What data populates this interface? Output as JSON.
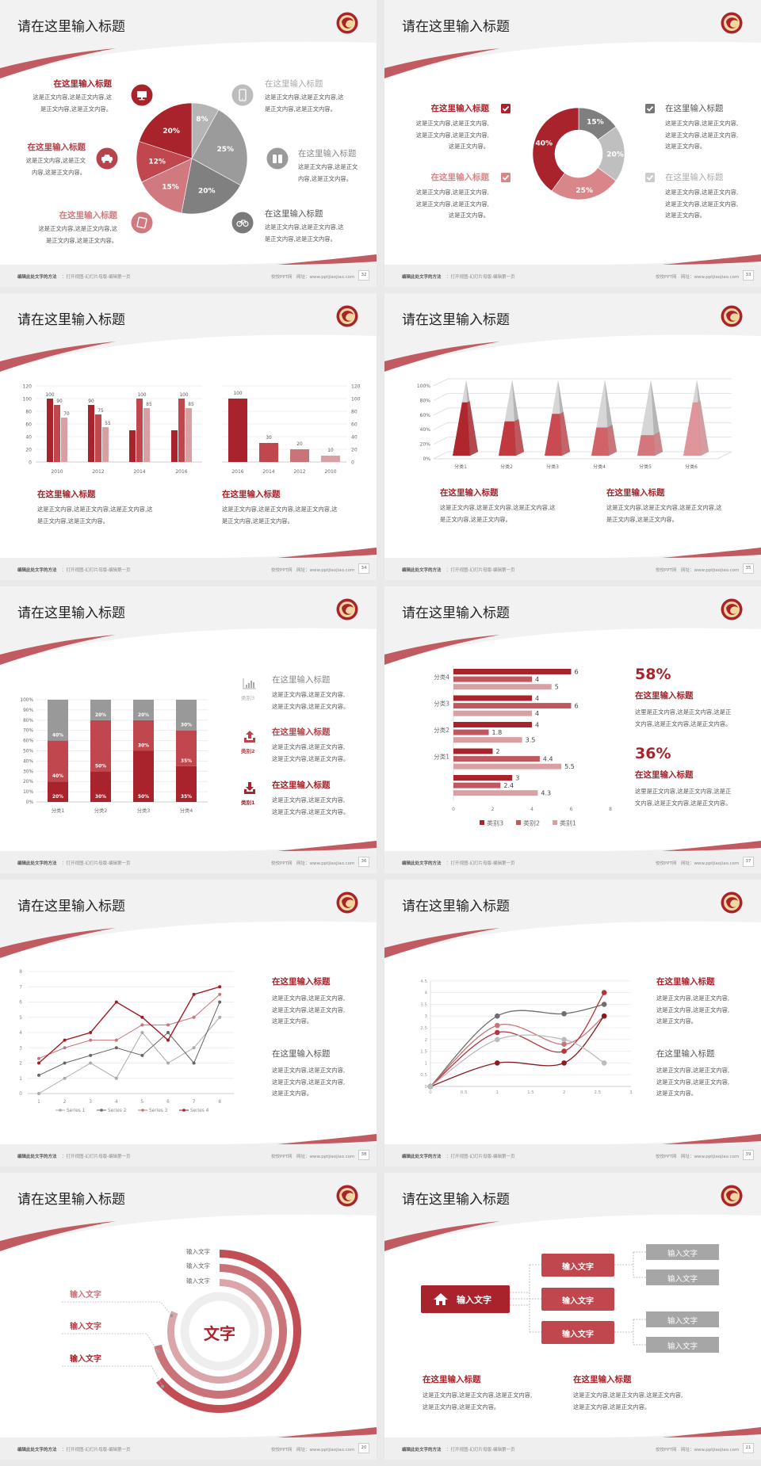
{
  "footer": {
    "hint_bold": "编辑此处文字的方法",
    "hint": "：打开视图-幻灯片母版-编辑第一页",
    "site": "佼佼PPT网",
    "url": "网址：www.pptjiaojiao.com"
  },
  "colors": {
    "primary": "#a8232b",
    "secondary": "#c0474e",
    "tertiary": "#c9737a",
    "light": "#d9a0a4",
    "gray": "#999999",
    "logo": "#a8232b"
  },
  "slides": [
    {
      "title": "请在这里输入标题",
      "page": "32",
      "items": [
        {
          "heading": "在这里输入标题",
          "lines": [
            "这是正文内容,这是正文内容,这",
            "是正文内容,这是正文内容。"
          ],
          "icon": "monitor-icon"
        },
        {
          "heading": "在这里输入标题",
          "lines": [
            "这是正文内容,这是正文",
            "内容,这是正文内容。"
          ],
          "icon": "car-icon"
        },
        {
          "heading": "在这里输入标题",
          "lines": [
            "这是正文内容,这是正文内容,这",
            "是正文内容,这是正文内容。"
          ],
          "icon": "book-icon"
        },
        {
          "heading": "在这里输入标题",
          "lines": [
            "这是正文内容,这是正文内容,这",
            "是正文内容,这是正文内容。"
          ],
          "icon": "phone-icon"
        },
        {
          "heading": "在这里输入标题",
          "lines": [
            "这是正文内容,这是正文",
            "内容,这是正文内容。"
          ],
          "icon": "binoculars-icon"
        },
        {
          "heading": "在这里输入标题",
          "lines": [
            "这是正文内容,这是正文内容,这",
            "是正文内容,这是正文内容。"
          ],
          "icon": "bicycle-icon"
        }
      ]
    },
    {
      "title": "请在这里输入标题",
      "page": "33",
      "items": [
        {
          "heading": "在这里输入标题",
          "lines": [
            "这是正文内容,这是正文内容,",
            "这是正文内容,这是正文内容,",
            "这是正文内容。"
          ],
          "icon": "checkbox-icon"
        },
        {
          "heading": "在这里输入标题",
          "lines": [
            "这是正文内容,这是正文内容,",
            "这是正文内容,这是正文内容,",
            "这是正文内容。"
          ],
          "icon": "checkbox-icon"
        },
        {
          "heading": "在这里输入标题",
          "lines": [
            "这是正文内容,这是正文内容,",
            "这是正文内容,这是正文内容,",
            "这是正文内容。"
          ],
          "icon": "checkbox-icon"
        },
        {
          "heading": "在这里输入标题",
          "lines": [
            "这是正文内容,这是正文内容,",
            "这是正文内容,这是正文内容,",
            "这是正文内容。"
          ],
          "icon": "checkbox-icon"
        }
      ]
    },
    {
      "title": "请在这里输入标题",
      "page": "34",
      "items": [
        {
          "heading": "在这里输入标题",
          "lines": [
            "这是正文内容,这是正文内容,这是正文内容,这",
            "是正文内容,这是正文内容。"
          ]
        },
        {
          "heading": "在这里输入标题",
          "lines": [
            "这是正文内容,这是正文内容,这是正文内容,这",
            "是正文内容,这是正文内容。"
          ]
        }
      ]
    },
    {
      "title": "请在这里输入标题",
      "page": "35",
      "items": [
        {
          "heading": "在这里输入标题",
          "lines": [
            "这是正文内容,这是正文内容,这是正文内容,这",
            "是正文内容,这是正文内容。"
          ]
        },
        {
          "heading": "在这里输入标题",
          "lines": [
            "这是正文内容,这是正文内容,这是正文内容,这",
            "是正文内容,这是正文内容。"
          ]
        }
      ]
    },
    {
      "title": "请在这里输入标题",
      "page": "36",
      "items": [
        {
          "heading": "在这里输入标题",
          "lines": [
            "这是正文内容,这是正文内容,",
            "这是正文内容,这是正文内容。"
          ],
          "label": "类别3",
          "icon": "bar-chart-icon"
        },
        {
          "heading": "在这里输入标题",
          "lines": [
            "这是正文内容,这是正文内容,",
            "这是正文内容,这是正文内容。"
          ],
          "label": "类别2",
          "icon": "upload-icon"
        },
        {
          "heading": "在这里输入标题",
          "lines": [
            "这是正文内容,这是正文内容,",
            "这是正文内容,这是正文内容。"
          ],
          "label": "类别1",
          "icon": "download-icon"
        }
      ]
    },
    {
      "title": "请在这里输入标题",
      "page": "37",
      "items": [
        {
          "stat": "58%",
          "heading": "在这里输入标题",
          "lines": [
            "这里是正文内容,这是正文内容,这是正",
            "文内容,这是正文内容,这是正文内容。"
          ]
        },
        {
          "stat": "36%",
          "heading": "在这里输入标题",
          "lines": [
            "这里是正文内容,这是正文内容,这是正",
            "文内容,这是正文内容,这是正文内容。"
          ]
        }
      ]
    },
    {
      "title": "请在这里输入标题",
      "page": "38",
      "items": [
        {
          "heading": "在这里输入标题",
          "lines": [
            "这是正文内容,这是正文内容,",
            "这是正文内容,这是正文内容,",
            "这是正文内容。"
          ]
        },
        {
          "heading": "在这里输入标题",
          "lines": [
            "这是正文内容,这是正文内容,",
            "这是正文内容,这是正文内容,",
            "这是正文内容。"
          ]
        }
      ]
    },
    {
      "title": "请在这里输入标题",
      "page": "39",
      "items": [
        {
          "heading": "在这里输入标题",
          "lines": [
            "这是正文内容,这是正文内容,",
            "这是正文内容,这是正文内容,",
            "这是正文内容。"
          ]
        },
        {
          "heading": "在这里输入标题",
          "lines": [
            "这是正文内容,这是正文内容,",
            "这是正文内容,这是正文内容,",
            "这是正文内容。"
          ]
        }
      ]
    },
    {
      "title": "请在这里输入标题",
      "page": "20",
      "center": "文字",
      "top_labels": [
        "输入文字",
        "输入文字",
        "输入文字"
      ],
      "left_labels": [
        "输入文字",
        "输入文字",
        "输入文字"
      ]
    },
    {
      "title": "请在这里输入标题",
      "page": "21",
      "root": {
        "label": "输入文字",
        "icon": "home-icon"
      },
      "mid": [
        "输入文字",
        "输入文字",
        "输入文字"
      ],
      "leaves": [
        "输入文字",
        "输入文字",
        "输入文字",
        "输入文字"
      ],
      "items": [
        {
          "heading": "在这里输入标题",
          "lines": [
            "这是正文内容,这是正文内容,这是正文内容,",
            "这是正文内容,这是正文内容。"
          ]
        },
        {
          "heading": "在这里输入标题",
          "lines": [
            "这是正文内容,这是正文内容,这是正文内容,",
            "这是正文内容,这是正文内容。"
          ]
        }
      ]
    }
  ],
  "chart_data": [
    {
      "type": "pie",
      "values": [
        8,
        25,
        20,
        15,
        12,
        20
      ],
      "labels": [
        "8%",
        "25%",
        "20%",
        "15%",
        "12%",
        "20%"
      ],
      "colors": [
        "#b5b5b5",
        "#9b9b9b",
        "#808080",
        "#d07a80",
        "#c0474e",
        "#a8232b"
      ]
    },
    {
      "type": "pie",
      "donut": true,
      "values": [
        15,
        20,
        25,
        40
      ],
      "labels": [
        "15%",
        "20%",
        "25%",
        "40%"
      ],
      "colors": [
        "#7f7f7f",
        "#bfbfbf",
        "#d9868b",
        "#a8232b"
      ]
    },
    {
      "type": "bar",
      "categories": [
        "2010",
        "2012",
        "2014",
        "2016"
      ],
      "ylim": [
        0,
        120
      ],
      "yticks": [
        "0",
        "20",
        "40",
        "60",
        "80",
        "100",
        "120"
      ],
      "series": [
        {
          "values": [
            100,
            90,
            50,
            50
          ],
          "labels": [
            "100",
            "90",
            null,
            null
          ],
          "color": "#a8232b"
        },
        {
          "values": [
            90,
            75,
            100,
            100
          ],
          "labels": [
            "90",
            "75",
            "100",
            "100"
          ],
          "color": "#c0474e"
        },
        {
          "values": [
            70,
            55,
            85,
            85
          ],
          "labels": [
            "70",
            "55",
            "85",
            "85"
          ],
          "color": "#d9a0a4"
        }
      ]
    },
    {
      "type": "bar",
      "categories": [
        "2016",
        "2014",
        "2012",
        "2010"
      ],
      "values": [
        100,
        30,
        20,
        10
      ],
      "labels": [
        "100",
        "30",
        "20",
        "10"
      ],
      "ylim": [
        0,
        120
      ],
      "yticks": [
        "0",
        "20",
        "40",
        "60",
        "80",
        "100",
        "120"
      ],
      "axis": "right",
      "colors": [
        "#a8232b",
        "#c0474e",
        "#c9737a",
        "#d9a0a4"
      ]
    },
    {
      "type": "bar",
      "style": "3d-pyramid",
      "categories": [
        "分类1",
        "分类2",
        "分类3",
        "分类4",
        "分类5",
        "分类6"
      ],
      "values": [
        70,
        45,
        55,
        37,
        27,
        70
      ],
      "ylim": [
        0,
        100
      ],
      "yticks": [
        "0%",
        "20%",
        "40%",
        "60%",
        "80%",
        "100%"
      ],
      "colors": [
        "#b0262d",
        "#c0393f",
        "#c94a50",
        "#d06268",
        "#d4777c",
        "#e0959a"
      ]
    },
    {
      "type": "bar",
      "stacked": "percent",
      "categories": [
        "分类1",
        "分类2",
        "分类3",
        "分类4"
      ],
      "yticks": [
        "0%",
        "10%",
        "20%",
        "30%",
        "40%",
        "50%",
        "60%",
        "70%",
        "80%",
        "90%",
        "100%"
      ],
      "series": [
        {
          "name": "类别1",
          "values": [
            20,
            30,
            50,
            35
          ],
          "labels": [
            "20%",
            "30%",
            "50%",
            "35%"
          ],
          "color": "#a8232b"
        },
        {
          "name": "类别2",
          "values": [
            40,
            50,
            30,
            35
          ],
          "labels": [
            "40%",
            "50%",
            "30%",
            "35%"
          ],
          "color": "#c0474e"
        },
        {
          "name": "类别3",
          "values": [
            40,
            20,
            20,
            30
          ],
          "labels": [
            "40%",
            "20%",
            "20%",
            "30%"
          ],
          "color": "#999999"
        }
      ]
    },
    {
      "type": "bar",
      "orientation": "horizontal",
      "categories": [
        "分类4",
        "分类3",
        "分类2",
        "分类1",
        ""
      ],
      "xlim": [
        0,
        8
      ],
      "xticks": [
        "0",
        "2",
        "4",
        "6",
        "8"
      ],
      "legend": "bottom",
      "series": [
        {
          "name": "类别3",
          "values": [
            6,
            4,
            4,
            2,
            3
          ],
          "labels": [
            "6",
            "4",
            "4",
            "2",
            "3"
          ],
          "color": "#a8232b"
        },
        {
          "name": "类别2",
          "values": [
            4,
            6,
            1.8,
            4.4,
            2.4
          ],
          "labels": [
            "4",
            "6",
            "1.8",
            "4.4",
            "2.4"
          ],
          "color": "#c0575e"
        },
        {
          "name": "类别1",
          "values": [
            5,
            4,
            3.5,
            5.5,
            4.3
          ],
          "labels": [
            "5",
            "4",
            "3.5",
            "5.5",
            "4.3"
          ],
          "color": "#d9a0a4"
        }
      ]
    },
    {
      "type": "line",
      "x": [
        "1",
        "2",
        "3",
        "4",
        "5",
        "6",
        "7",
        "8"
      ],
      "ylim": [
        0,
        8
      ],
      "yticks": [
        "0",
        "1",
        "2",
        "3",
        "4",
        "5",
        "6",
        "7",
        "8"
      ],
      "legend": "bottom",
      "grid": true,
      "series": [
        {
          "name": "Series 1",
          "values": [
            0,
            1,
            2,
            1,
            4,
            2,
            3,
            5
          ],
          "color": "#aaaaaa"
        },
        {
          "name": "Series 2",
          "values": [
            1.2,
            2,
            2.5,
            3,
            2.5,
            4,
            2,
            6
          ],
          "color": "#666666"
        },
        {
          "name": "Series 3",
          "values": [
            2.3,
            3,
            3.5,
            3.5,
            4.5,
            4.5,
            5,
            6.5
          ],
          "color": "#c9737a"
        },
        {
          "name": "Series 4",
          "values": [
            2,
            3.5,
            4,
            6,
            5,
            3.5,
            6.5,
            7
          ],
          "color": "#a01c24"
        }
      ]
    },
    {
      "type": "scatter",
      "smooth": true,
      "x": [
        0,
        1,
        2,
        2.6
      ],
      "xlim": [
        0,
        3
      ],
      "ylim": [
        0,
        4.5
      ],
      "xticks": [
        "0",
        "0.5",
        "1",
        "1.5",
        "2",
        "2.5",
        "3"
      ],
      "yticks": [
        "0",
        "0.5",
        "1",
        "1.5",
        "2",
        "2.5",
        "3",
        "3.5",
        "4",
        "4.5"
      ],
      "grid": true,
      "series": [
        {
          "values": [
            0,
            3,
            3.1,
            3.5
          ],
          "color": "#6e6e6e"
        },
        {
          "values": [
            0,
            2.6,
            1.8,
            3
          ],
          "color": "#c9737a"
        },
        {
          "values": [
            0,
            2.3,
            1.5,
            4
          ],
          "color": "#b8343c"
        },
        {
          "values": [
            0,
            1,
            1,
            3
          ],
          "color": "#8b1a20"
        },
        {
          "values": [
            0,
            2,
            2,
            1
          ],
          "color": "#bbbbbb"
        }
      ]
    }
  ]
}
